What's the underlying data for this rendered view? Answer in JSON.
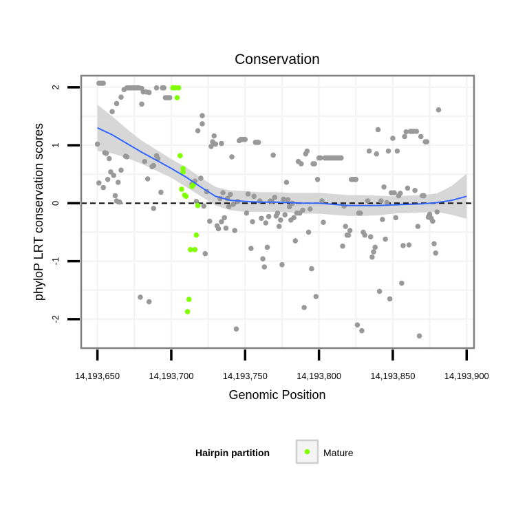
{
  "chart_data": {
    "type": "scatter",
    "title": "Conservation",
    "xlabel": "Genomic Position",
    "ylabel": "phyloP LRT conservation scores",
    "xlim": [
      14193639,
      14193905
    ],
    "ylim": [
      -2.5,
      2.2
    ],
    "x_ticks": [
      14193650,
      14193700,
      14193750,
      14193800,
      14193850,
      14193900
    ],
    "x_tick_labels": [
      "14,193,650",
      "14,193,700",
      "14,193,750",
      "14,193,800",
      "14,193,850",
      "14,193,900"
    ],
    "y_ticks": [
      -2,
      -1,
      0,
      1,
      2
    ],
    "y_tick_labels": [
      "-2",
      "-1",
      "0",
      "1",
      "2"
    ],
    "reference_line": 0,
    "colors": {
      "other": "#999999",
      "mature": "#80ff00",
      "smooth": "#3366ff",
      "band": "#d3d3d3",
      "border": "#7f7f7f",
      "grid": "#f4f4f4"
    },
    "legend": {
      "title": "Hairpin partition",
      "entries": [
        "Mature"
      ],
      "position": "bottom"
    },
    "series": [
      {
        "name": "Other",
        "points": [
          [
            14193650,
            1.02
          ],
          [
            14193651,
            0.35
          ],
          [
            14193651,
            2.07
          ],
          [
            14193652,
            2.07
          ],
          [
            14193653,
            2.07
          ],
          [
            14193654,
            2.07
          ],
          [
            14193654,
            0.27
          ],
          [
            14193655,
            0.87
          ],
          [
            14193656,
            0.86
          ],
          [
            14193657,
            0.41
          ],
          [
            14193658,
            0.77
          ],
          [
            14193659,
            0.54
          ],
          [
            14193660,
            1.58
          ],
          [
            14193661,
            0.48
          ],
          [
            14193662,
            0.13
          ],
          [
            14193663,
            0.04
          ],
          [
            14193663,
            1.72
          ],
          [
            14193664,
            0.36
          ],
          [
            14193665,
            0.02
          ],
          [
            14193666,
            0.57
          ],
          [
            14193666,
            1.83
          ],
          [
            14193668,
            1.96
          ],
          [
            14193669,
            0.81
          ],
          [
            14193670,
            1.99
          ],
          [
            14193670,
            0.8
          ],
          [
            14193671,
            1.99
          ],
          [
            14193672,
            1.99
          ],
          [
            14193673,
            1.99
          ],
          [
            14193674,
            1.99
          ],
          [
            14193675,
            1.99
          ],
          [
            14193676,
            1.99
          ],
          [
            14193677,
            1.99
          ],
          [
            14193678,
            1.99
          ],
          [
            14193679,
            -1.62
          ],
          [
            14193680,
            1.71
          ],
          [
            14193680,
            1.98
          ],
          [
            14193681,
            1.92
          ],
          [
            14193682,
            0.72
          ],
          [
            14193683,
            1.92
          ],
          [
            14193684,
            0.42
          ],
          [
            14193685,
            1.91
          ],
          [
            14193685,
            -1.7
          ],
          [
            14193687,
            0.63
          ],
          [
            14193688,
            -0.09
          ],
          [
            14193688,
            0.65
          ],
          [
            14193690,
            1.99
          ],
          [
            14193690,
            0.82
          ],
          [
            14193691,
            0.77
          ],
          [
            14193693,
            0.19
          ],
          [
            14193694,
            1.99
          ],
          [
            14193695,
            1.99
          ],
          [
            14193696,
            1.82
          ],
          [
            14193697,
            1.82
          ],
          [
            14193698,
            1.82
          ],
          [
            14193699,
            1.82
          ],
          [
            14193702,
            1.99
          ],
          [
            14193714,
            0.33
          ],
          [
            14193716,
            0.38
          ],
          [
            14193717,
            0.03
          ],
          [
            14193718,
            1.25
          ],
          [
            14193720,
            0.43
          ],
          [
            14193721,
            1.37
          ],
          [
            14193721,
            1.51
          ],
          [
            14193722,
            -0.05
          ],
          [
            14193723,
            -0.87
          ],
          [
            14193724,
            0.2
          ],
          [
            14193726,
            -0.31
          ],
          [
            14193727,
            0.98
          ],
          [
            14193728,
            1.06
          ],
          [
            14193729,
            1.16
          ],
          [
            14193730,
            1.02
          ],
          [
            14193731,
            -0.39
          ],
          [
            14193732,
            -0.44
          ],
          [
            14193733,
            0.08
          ],
          [
            14193734,
            -0.32
          ],
          [
            14193734,
            1.03
          ],
          [
            14193735,
            0.18
          ],
          [
            14193736,
            -0.25
          ],
          [
            14193737,
            -0.43
          ],
          [
            14193738,
            0.08
          ],
          [
            14193739,
            -0.06
          ],
          [
            14193740,
            0.15
          ],
          [
            14193741,
            0.8
          ],
          [
            14193742,
            -0.02
          ],
          [
            14193743,
            -0.47
          ],
          [
            14193744,
            -2.17
          ],
          [
            14193745,
            0.03
          ],
          [
            14193746,
            1.08
          ],
          [
            14193747,
            1.1
          ],
          [
            14193748,
            1.1
          ],
          [
            14193749,
            1.1
          ],
          [
            14193750,
            1.1
          ],
          [
            14193751,
            -0.17
          ],
          [
            14193752,
            0.16
          ],
          [
            14193754,
            -0.78
          ],
          [
            14193755,
            -0.32
          ],
          [
            14193756,
            0.12
          ],
          [
            14193757,
            1.05
          ],
          [
            14193758,
            1.05
          ],
          [
            14193759,
            1.05
          ],
          [
            14193760,
            0.04
          ],
          [
            14193761,
            -0.26
          ],
          [
            14193762,
            -0.96
          ],
          [
            14193763,
            -1.1
          ],
          [
            14193764,
            -0.34
          ],
          [
            14193765,
            -0.76
          ],
          [
            14193766,
            -0.23
          ],
          [
            14193767,
            0.04
          ],
          [
            14193768,
            0.03
          ],
          [
            14193769,
            0.83
          ],
          [
            14193770,
            0.1
          ],
          [
            14193771,
            -0.22
          ],
          [
            14193772,
            -0.17
          ],
          [
            14193773,
            -0.4
          ],
          [
            14193774,
            -0.29
          ],
          [
            14193775,
            -1.06
          ],
          [
            14193776,
            0.07
          ],
          [
            14193777,
            -0.2
          ],
          [
            14193778,
            0.36
          ],
          [
            14193779,
            0.06
          ],
          [
            14193780,
            -0.06
          ],
          [
            14193781,
            -0.29
          ],
          [
            14193782,
            0.0
          ],
          [
            14193783,
            -0.25
          ],
          [
            14193784,
            -0.65
          ],
          [
            14193785,
            -0.17
          ],
          [
            14193786,
            0.72
          ],
          [
            14193787,
            -0.17
          ],
          [
            14193788,
            0.68
          ],
          [
            14193789,
            -0.12
          ],
          [
            14193790,
            -1.8
          ],
          [
            14193791,
            0.85
          ],
          [
            14193792,
            0.9
          ],
          [
            14193793,
            -0.5
          ],
          [
            14193794,
            -0.1
          ],
          [
            14193795,
            -1.13
          ],
          [
            14193796,
            0.68
          ],
          [
            14193797,
            0.68
          ],
          [
            14193798,
            -1.61
          ],
          [
            14193799,
            0.41
          ],
          [
            14193800,
            0.78
          ],
          [
            14193801,
            0.78
          ],
          [
            14193802,
            0.04
          ],
          [
            14193803,
            -0.33
          ],
          [
            14193804,
            0.78
          ],
          [
            14193805,
            0.78
          ],
          [
            14193806,
            0.78
          ],
          [
            14193807,
            0.78
          ],
          [
            14193808,
            0.78
          ],
          [
            14193809,
            0.78
          ],
          [
            14193810,
            0.78
          ],
          [
            14193811,
            0.78
          ],
          [
            14193812,
            0.78
          ],
          [
            14193813,
            0.78
          ],
          [
            14193814,
            0.78
          ],
          [
            14193815,
            0.78
          ],
          [
            14193816,
            -0.74
          ],
          [
            14193817,
            -0.05
          ],
          [
            14193818,
            -0.4
          ],
          [
            14193819,
            -0.55
          ],
          [
            14193820,
            -0.55
          ],
          [
            14193821,
            -0.47
          ],
          [
            14193822,
            0.41
          ],
          [
            14193823,
            0.41
          ],
          [
            14193824,
            0.41
          ],
          [
            14193825,
            0.41
          ],
          [
            14193826,
            -2.1
          ],
          [
            14193827,
            -0.17
          ],
          [
            14193828,
            -0.17
          ],
          [
            14193829,
            -2.2
          ],
          [
            14193830,
            -0.5
          ],
          [
            14193831,
            -0.55
          ],
          [
            14193833,
            0.04
          ],
          [
            14193834,
            0.9
          ],
          [
            14193835,
            -0.58
          ],
          [
            14193836,
            -0.93
          ],
          [
            14193837,
            -0.84
          ],
          [
            14193838,
            -0.76
          ],
          [
            14193839,
            0.85
          ],
          [
            14193840,
            1.27
          ],
          [
            14193841,
            -1.52
          ],
          [
            14193842,
            0.04
          ],
          [
            14193843,
            -0.28
          ],
          [
            14193844,
            0.28
          ],
          [
            14193845,
            -0.62
          ],
          [
            14193846,
            0.01
          ],
          [
            14193847,
            0.9
          ],
          [
            14193848,
            -1.65
          ],
          [
            14193849,
            0.18
          ],
          [
            14193850,
            1.12
          ],
          [
            14193851,
            0.18
          ],
          [
            14193852,
            -0.25
          ],
          [
            14193853,
            0.9
          ],
          [
            14193854,
            0.13
          ],
          [
            14193855,
            0.17
          ],
          [
            14193856,
            -1.38
          ],
          [
            14193857,
            -0.73
          ],
          [
            14193858,
            1.15
          ],
          [
            14193859,
            1.23
          ],
          [
            14193860,
            0.26
          ],
          [
            14193861,
            -0.72
          ],
          [
            14193862,
            1.24
          ],
          [
            14193863,
            1.24
          ],
          [
            14193864,
            1.24
          ],
          [
            14193865,
            0.22
          ],
          [
            14193866,
            1.24
          ],
          [
            14193867,
            -0.4
          ],
          [
            14193868,
            -2.29
          ],
          [
            14193869,
            1.15
          ],
          [
            14193870,
            0.13
          ],
          [
            14193871,
            0.13
          ],
          [
            14193872,
            1.06
          ],
          [
            14193873,
            1.06
          ],
          [
            14193874,
            -0.24
          ],
          [
            14193875,
            -0.19
          ],
          [
            14193876,
            -0.26
          ],
          [
            14193877,
            -0.31
          ],
          [
            14193878,
            -0.7
          ],
          [
            14193879,
            -0.86
          ],
          [
            14193880,
            -0.15
          ],
          [
            14193881,
            1.61
          ]
        ]
      },
      {
        "name": "Mature",
        "points": [
          [
            14193701,
            1.99
          ],
          [
            14193702,
            1.99
          ],
          [
            14193703,
            1.99
          ],
          [
            14193704,
            1.82
          ],
          [
            14193705,
            1.99
          ],
          [
            14193706,
            0.82
          ],
          [
            14193707,
            0.24
          ],
          [
            14193708,
            0.54
          ],
          [
            14193709,
            0.14
          ],
          [
            14193710,
            0.12
          ],
          [
            14193711,
            -1.87
          ],
          [
            14193712,
            -1.66
          ],
          [
            14193713,
            -0.8
          ],
          [
            14193714,
            0.29
          ],
          [
            14193715,
            0.32
          ],
          [
            14193716,
            -0.8
          ],
          [
            14193717,
            -0.55
          ],
          [
            14193718,
            -0.04
          ],
          [
            14193708,
            0.6
          ]
        ]
      }
    ],
    "smooth": {
      "x": [
        14193650,
        14193660,
        14193670,
        14193680,
        14193690,
        14193700,
        14193710,
        14193720,
        14193730,
        14193740,
        14193750,
        14193760,
        14193770,
        14193780,
        14193790,
        14193800,
        14193810,
        14193820,
        14193830,
        14193840,
        14193850,
        14193860,
        14193870,
        14193880,
        14193890,
        14193900
      ],
      "y": [
        1.3,
        1.18,
        1.03,
        0.88,
        0.74,
        0.6,
        0.45,
        0.28,
        0.12,
        0.05,
        0.03,
        0.02,
        0.02,
        0.01,
        0.0,
        0.0,
        -0.02,
        -0.04,
        -0.04,
        -0.04,
        -0.03,
        -0.02,
        -0.01,
        0.01,
        0.05,
        0.12
      ],
      "lower": [
        0.9,
        0.86,
        0.78,
        0.68,
        0.56,
        0.44,
        0.28,
        0.12,
        -0.04,
        -0.12,
        -0.15,
        -0.15,
        -0.15,
        -0.16,
        -0.18,
        -0.18,
        -0.2,
        -0.22,
        -0.22,
        -0.21,
        -0.18,
        -0.17,
        -0.16,
        -0.15,
        -0.2,
        -0.27
      ],
      "upper": [
        1.7,
        1.5,
        1.28,
        1.08,
        0.92,
        0.76,
        0.62,
        0.44,
        0.28,
        0.22,
        0.21,
        0.19,
        0.19,
        0.18,
        0.18,
        0.18,
        0.16,
        0.14,
        0.14,
        0.13,
        0.12,
        0.13,
        0.14,
        0.17,
        0.3,
        0.51
      ]
    }
  }
}
